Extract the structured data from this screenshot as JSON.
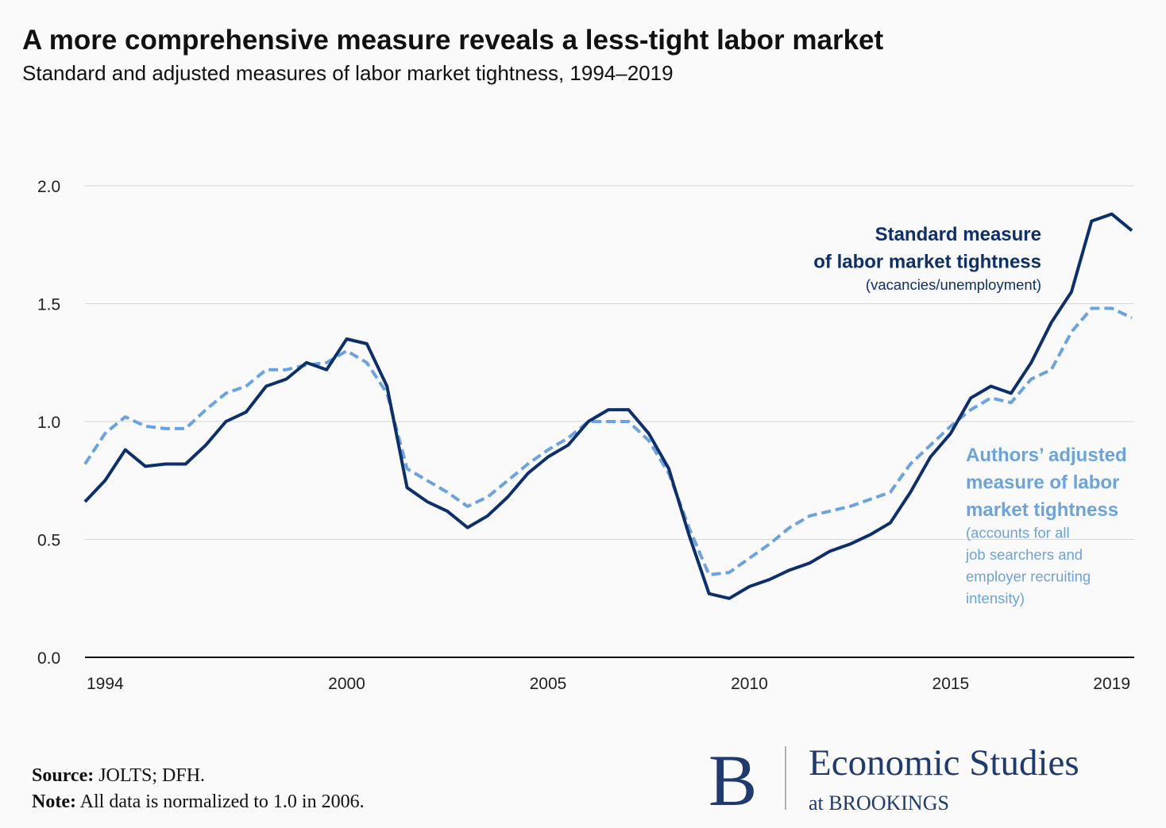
{
  "chart_data": {
    "type": "line",
    "title": "A more comprehensive measure reveals a less-tight labor market",
    "subtitle": "Standard and adjusted measures of labor market tightness, 1994–2019",
    "x": [
      1993.5,
      1994,
      1994.5,
      1995,
      1995.5,
      1996,
      1996.5,
      1997,
      1997.5,
      1998,
      1998.5,
      1999,
      1999.5,
      2000,
      2000.5,
      2001,
      2001.5,
      2002,
      2002.5,
      2003,
      2003.5,
      2004,
      2004.5,
      2005,
      2005.5,
      2006,
      2006.5,
      2007,
      2007.5,
      2008,
      2008.5,
      2009,
      2009.5,
      2010,
      2010.5,
      2011,
      2011.5,
      2012,
      2012.5,
      2013,
      2013.5,
      2014,
      2014.5,
      2015,
      2015.5,
      2016,
      2016.5,
      2017,
      2017.5,
      2018,
      2018.5,
      2019,
      2019.5
    ],
    "series": [
      {
        "name": "Standard measure",
        "color": "#0d2f6b",
        "dashed": false,
        "values": [
          0.66,
          0.75,
          0.88,
          0.81,
          0.82,
          0.82,
          0.9,
          1.0,
          1.04,
          1.15,
          1.18,
          1.25,
          1.22,
          1.35,
          1.33,
          1.15,
          0.72,
          0.66,
          0.62,
          0.55,
          0.6,
          0.68,
          0.78,
          0.85,
          0.9,
          1.0,
          1.05,
          1.05,
          0.95,
          0.8,
          0.52,
          0.27,
          0.25,
          0.3,
          0.33,
          0.37,
          0.4,
          0.45,
          0.48,
          0.52,
          0.57,
          0.7,
          0.85,
          0.95,
          1.1,
          1.15,
          1.12,
          1.25,
          1.42,
          1.55,
          1.85,
          1.88,
          1.81
        ]
      },
      {
        "name": "Authors’ adjusted",
        "color": "#6ba3e0",
        "dashed": true,
        "values": [
          0.82,
          0.95,
          1.02,
          0.98,
          0.97,
          0.97,
          1.05,
          1.12,
          1.15,
          1.22,
          1.22,
          1.24,
          1.25,
          1.3,
          1.25,
          1.12,
          0.8,
          0.75,
          0.7,
          0.64,
          0.68,
          0.75,
          0.82,
          0.88,
          0.93,
          1.0,
          1.0,
          1.0,
          0.92,
          0.78,
          0.55,
          0.35,
          0.36,
          0.42,
          0.48,
          0.55,
          0.6,
          0.62,
          0.64,
          0.67,
          0.7,
          0.82,
          0.9,
          0.98,
          1.05,
          1.1,
          1.08,
          1.18,
          1.22,
          1.38,
          1.48,
          1.48,
          1.44
        ]
      }
    ],
    "annotations": [
      {
        "lines": [
          "Standard measure",
          "of labor market tightness"
        ],
        "detail": [
          "(vacancies/unemployment)"
        ]
      },
      {
        "lines": [
          "Authors’ adjusted",
          "measure of labor",
          "market tightness"
        ],
        "detail": [
          "(accounts for all",
          "job searchers and",
          "employer recruiting",
          "intensity)"
        ]
      }
    ],
    "xlim": [
      1993.5,
      2019.5
    ],
    "xticks": [
      1994,
      2000,
      2005,
      2010,
      2015,
      2019
    ],
    "ylim": [
      0,
      2
    ],
    "yticks": [
      {
        "value": 0,
        "label": "0.0"
      },
      0.5,
      {
        "value": 1,
        "label": "1.0"
      },
      1.5,
      {
        "value": 2,
        "label": "2.0"
      }
    ],
    "grid": true
  },
  "footer": {
    "source_label": "Source:",
    "source": "JOLTS; DFH.",
    "note_label": "Note:",
    "note": "All data is normalized to 1.0 in 2006.",
    "logo_letter": "B",
    "logo_title": "Economic Studies",
    "logo_subtitle": "at BROOKINGS"
  }
}
